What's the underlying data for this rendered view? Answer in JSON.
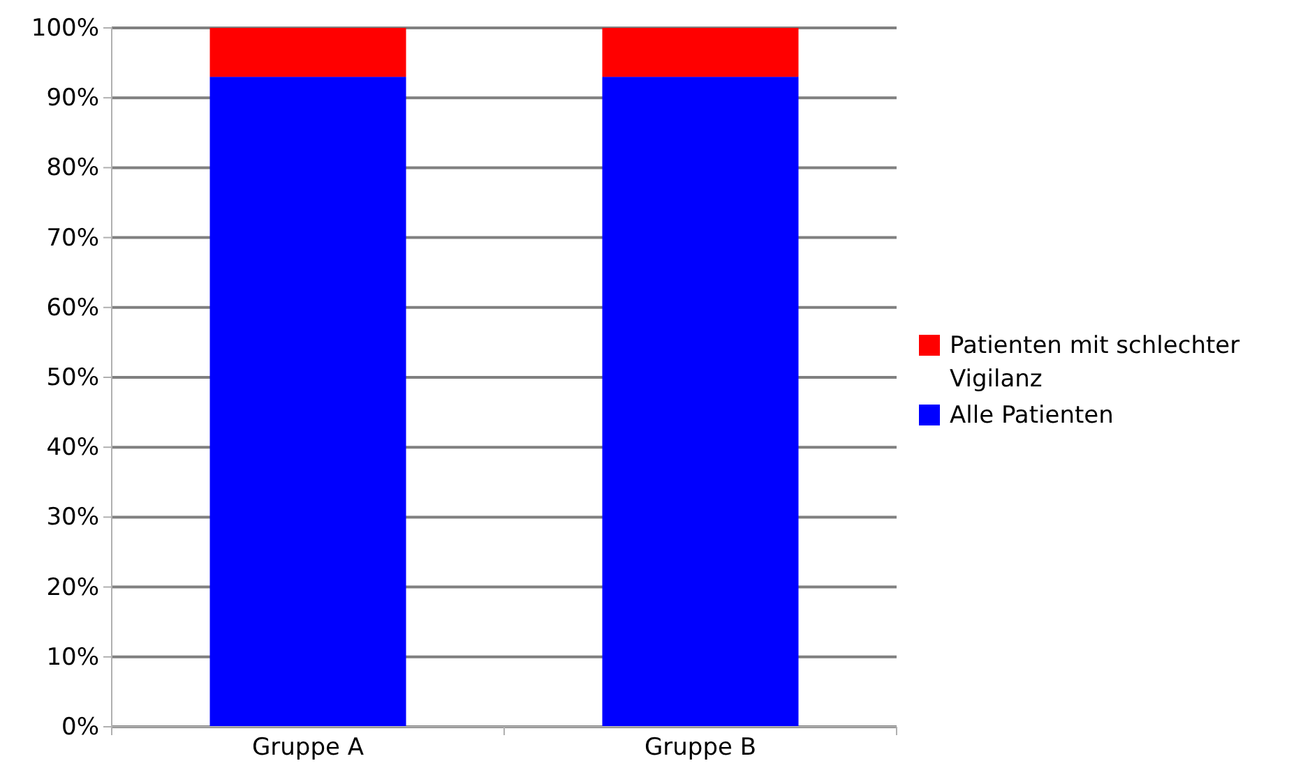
{
  "chart_data": {
    "type": "bar",
    "stacked": true,
    "categories": [
      "Gruppe A",
      "Gruppe B"
    ],
    "series": [
      {
        "name": "Alle Patienten",
        "color": "#0000ff",
        "values": [
          93,
          93
        ]
      },
      {
        "name": "Patienten mit schlechter Vigilanz",
        "color": "#ff0000",
        "values": [
          7,
          7
        ]
      }
    ],
    "ylim": [
      0,
      100
    ],
    "yticks": [
      {
        "value": 0,
        "label": "0%"
      },
      {
        "value": 10,
        "label": "10%"
      },
      {
        "value": 20,
        "label": "20%"
      },
      {
        "value": 30,
        "label": "30%"
      },
      {
        "value": 40,
        "label": "40%"
      },
      {
        "value": 50,
        "label": "50%"
      },
      {
        "value": 60,
        "label": "60%"
      },
      {
        "value": 70,
        "label": "70%"
      },
      {
        "value": 80,
        "label": "80%"
      },
      {
        "value": 90,
        "label": "90%"
      },
      {
        "value": 100,
        "label": "100%"
      }
    ],
    "grid": "y",
    "legend": "right"
  }
}
